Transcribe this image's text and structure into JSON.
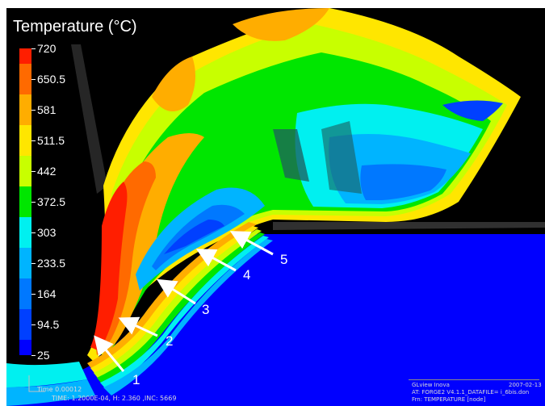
{
  "window": {
    "title": "Temperature (°C)"
  },
  "legend": {
    "labels": [
      "720",
      "650.5",
      "581",
      "511.5",
      "442",
      "372.5",
      "303",
      "233.5",
      "164",
      "94.5",
      "25"
    ],
    "colors": [
      "#ff1e00",
      "#ff6a00",
      "#ffad00",
      "#ffe600",
      "#c8ff00",
      "#00e600",
      "#00f0f0",
      "#00b4ff",
      "#0078ff",
      "#0040ff",
      "#0000ff"
    ]
  },
  "callouts": [
    "1",
    "2",
    "3",
    "4",
    "5"
  ],
  "footer": {
    "time_short": "Time  0.00012",
    "time_full": "TIME: 1.2000E-04, H:  2.360    ,INC:  5669",
    "app": "GLview Inova",
    "date": "2007-02-13",
    "at_line": "AT:   FORGE2  V4.1.1_DATAFILE= i_6bis.don",
    "frn_line": "Frn:  TEMPERATURE [node]"
  }
}
